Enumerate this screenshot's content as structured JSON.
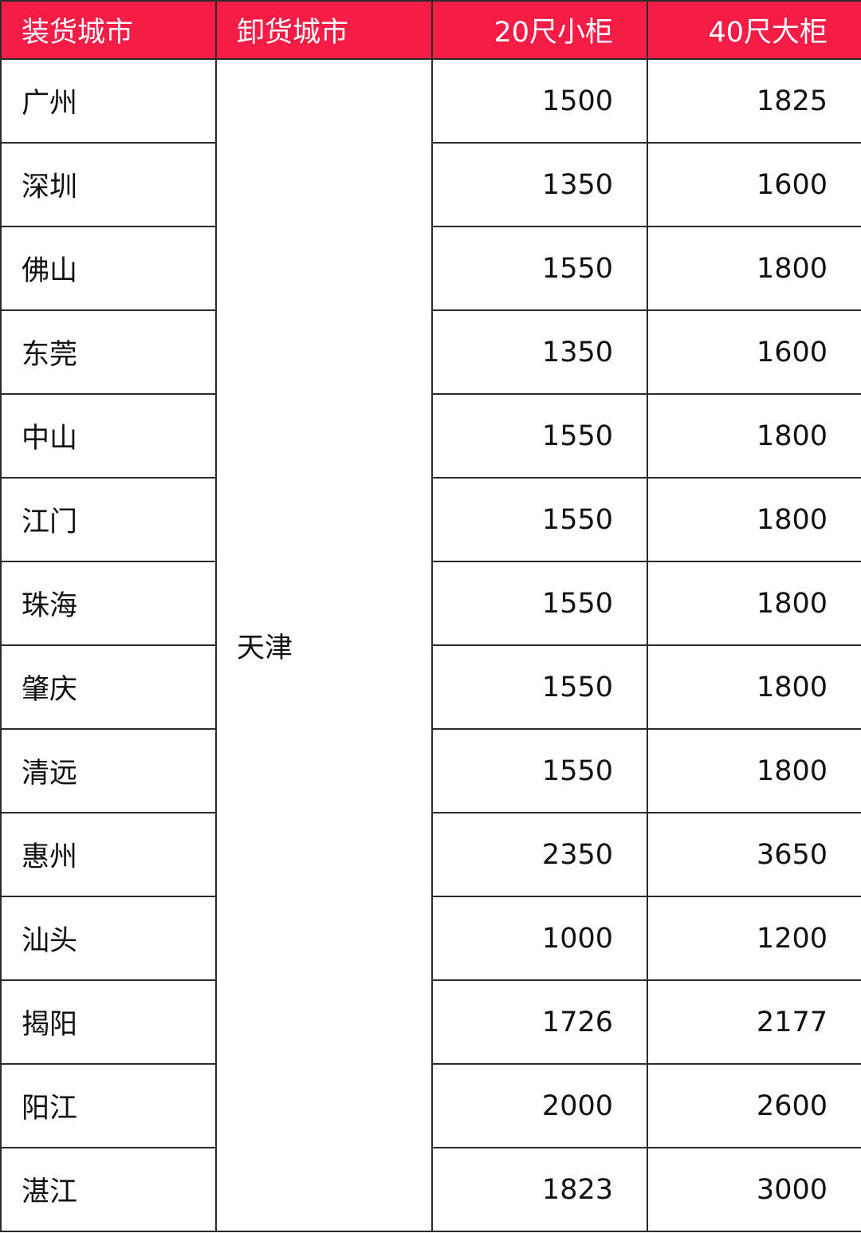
{
  "table": {
    "headers": [
      "装货城市",
      "卸货城市",
      "20尺小柜",
      "40尺大柜"
    ],
    "header_color": "#F51D46",
    "destination": "天津",
    "rows": [
      {
        "origin": "广州",
        "c20": "1500",
        "c40": "1825"
      },
      {
        "origin": "深圳",
        "c20": "1350",
        "c40": "1600"
      },
      {
        "origin": "佛山",
        "c20": "1550",
        "c40": "1800"
      },
      {
        "origin": "东莞",
        "c20": "1350",
        "c40": "1600"
      },
      {
        "origin": "中山",
        "c20": "1550",
        "c40": "1800"
      },
      {
        "origin": "江门",
        "c20": "1550",
        "c40": "1800"
      },
      {
        "origin": "珠海",
        "c20": "1550",
        "c40": "1800"
      },
      {
        "origin": "肇庆",
        "c20": "1550",
        "c40": "1800"
      },
      {
        "origin": "清远",
        "c20": "1550",
        "c40": "1800"
      },
      {
        "origin": "惠州",
        "c20": "2350",
        "c40": "3650"
      },
      {
        "origin": "汕头",
        "c20": "1000",
        "c40": "1200"
      },
      {
        "origin": "揭阳",
        "c20": "1726",
        "c40": "2177"
      },
      {
        "origin": "阳江",
        "c20": "2000",
        "c40": "2600"
      },
      {
        "origin": "湛江",
        "c20": "1823",
        "c40": "3000"
      }
    ]
  }
}
